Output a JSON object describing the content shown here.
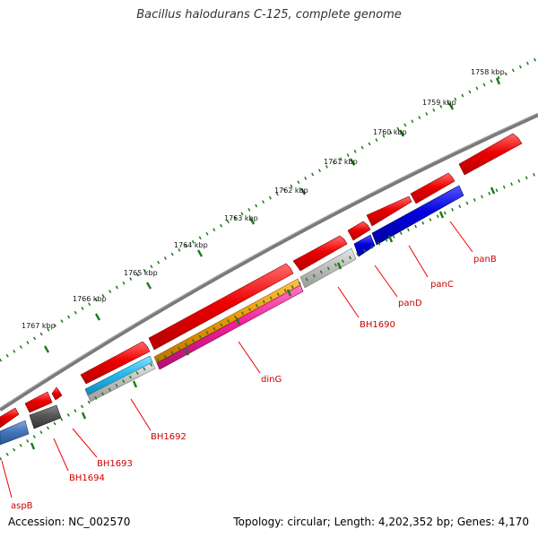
{
  "title": "Bacillus halodurans C-125, complete genome",
  "accession": "Accession: NC_002570",
  "topology": "Topology: circular; Length: 4,202,352 bp; Genes: 4,170",
  "scale_labels": [
    "1758 kbp",
    "1759 kbp",
    "1760 kbp",
    "1761 kbp",
    "1762 kbp",
    "1763 kbp",
    "1764 kbp",
    "1765 kbp",
    "1766 kbp",
    "1767 kbp"
  ],
  "gene_labels": [
    "panB",
    "panC",
    "panD",
    "BH1690",
    "dinG",
    "BH1692",
    "BH1693",
    "BH1694",
    "aspB"
  ],
  "colors": {
    "backbone": "#7a7a7a",
    "ticks": "#1a7a1a",
    "forward_strand": "#ee0000",
    "label_line": "#ee0000",
    "label_text": "#cc0000",
    "blue_gene": "#0000dd",
    "light_gray_gene": "#c0c0c0",
    "orange_gene": "#ee9900",
    "magenta_gene": "#ee2299",
    "cyan_gene": "#22bbee",
    "steel_blue_gene": "#4477bb",
    "dark_gray_gene": "#555555"
  }
}
